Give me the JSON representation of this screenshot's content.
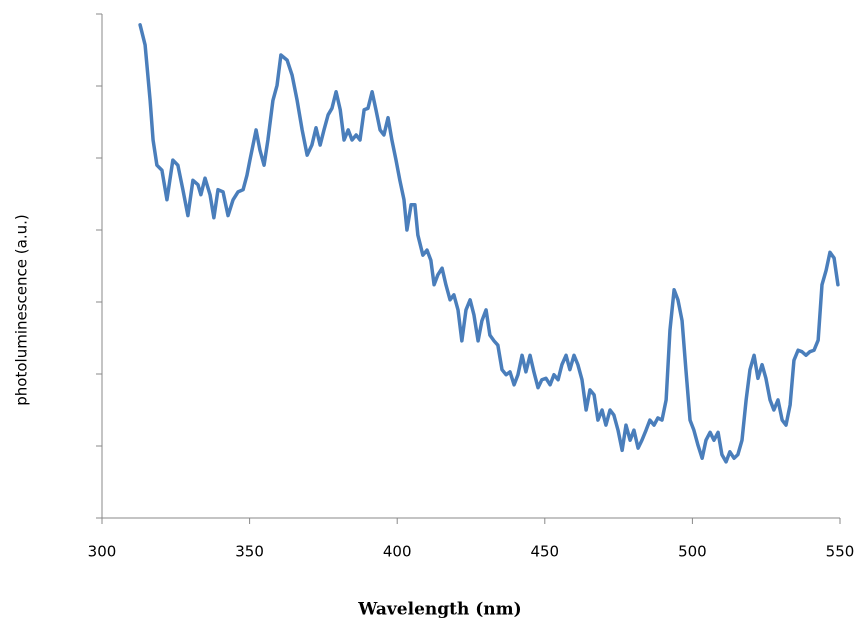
{
  "chart_data": {
    "type": "line",
    "x_label": "Wavelength (nm)",
    "y_label": "photoluminescence  (a.u.)",
    "xlim": [
      300,
      550
    ],
    "xticks": [
      300,
      350,
      400,
      450,
      500,
      550
    ],
    "ylim": [
      0,
      7
    ],
    "yticks": [
      0,
      1,
      2,
      3,
      4,
      5,
      6,
      7
    ],
    "series": [
      {
        "color": "#4a7ebb",
        "x": [
          312.9,
          314.6,
          316.3,
          317.3,
          318.6,
          320.3,
          322,
          324,
          325.7,
          327.4,
          329.1,
          330.8,
          332.5,
          333.5,
          334.9,
          336.6,
          337.9,
          339.3,
          341,
          342.7,
          344.4,
          346.1,
          347.8,
          349.1,
          350.1,
          352.2,
          353.5,
          354.9,
          356.2,
          357.9,
          359.3,
          360.6,
          362.7,
          364.4,
          366.1,
          367.8,
          369.5,
          371.1,
          372.5,
          373.9,
          375.2,
          376.6,
          377.9,
          379.3,
          380.7,
          382,
          383.4,
          384.7,
          386.1,
          387.4,
          388.8,
          390.1,
          391.5,
          392.8,
          394.2,
          395.5,
          396.9,
          398.2,
          399.6,
          400.9,
          402.3,
          403.3,
          404.7,
          406,
          407,
          408.7,
          410.1,
          411.4,
          412.5,
          413.8,
          415.2,
          416.5,
          417.9,
          419.2,
          420.6,
          421.9,
          423.3,
          424.7,
          426,
          427.4,
          428.7,
          430.1,
          431.4,
          432.8,
          434.1,
          435.5,
          436.9,
          438.2,
          439.6,
          440.9,
          442.3,
          443.6,
          445,
          446.3,
          447.7,
          449,
          450.4,
          451.8,
          453.1,
          454.5,
          455.8,
          457.2,
          458.5,
          459.9,
          461.2,
          462.6,
          464,
          465.3,
          466.7,
          468,
          469.4,
          470.7,
          472.1,
          473.4,
          474.8,
          476.2,
          477.5,
          478.9,
          480.2,
          481.6,
          482.9,
          484.3,
          485.6,
          487,
          488.3,
          489.7,
          491.1,
          492.4,
          493.8,
          495.1,
          496.5,
          497.8,
          499.2,
          500.5,
          501.9,
          503.3,
          504.6,
          506,
          507.3,
          508.7,
          510,
          511.4,
          512.7,
          514.1,
          515.4,
          516.8,
          518.2,
          519.5,
          520.9,
          522.2,
          523.6,
          524.9,
          526.3,
          527.6,
          529,
          530.4,
          531.7,
          533.1,
          534.4,
          535.8,
          537.1,
          538.5,
          539.8,
          541.2,
          542.6,
          543.9,
          545.3,
          546.6,
          548,
          549.3
        ],
        "values": [
          6.85,
          6.57,
          5.8,
          5.25,
          4.9,
          4.83,
          4.42,
          4.97,
          4.9,
          4.56,
          4.2,
          4.69,
          4.63,
          4.49,
          4.72,
          4.49,
          4.17,
          4.56,
          4.53,
          4.2,
          4.42,
          4.53,
          4.56,
          4.76,
          4.97,
          5.39,
          5.11,
          4.9,
          5.25,
          5.8,
          6.01,
          6.43,
          6.36,
          6.15,
          5.8,
          5.39,
          5.04,
          5.18,
          5.42,
          5.18,
          5.39,
          5.6,
          5.69,
          5.92,
          5.67,
          5.25,
          5.39,
          5.25,
          5.32,
          5.25,
          5.67,
          5.69,
          5.92,
          5.67,
          5.39,
          5.32,
          5.56,
          5.25,
          4.97,
          4.69,
          4.42,
          4,
          4.35,
          4.35,
          3.93,
          3.65,
          3.72,
          3.58,
          3.24,
          3.38,
          3.47,
          3.24,
          3.03,
          3.1,
          2.89,
          2.46,
          2.89,
          3.03,
          2.82,
          2.46,
          2.74,
          2.89,
          2.54,
          2.46,
          2.4,
          2.06,
          1.99,
          2.03,
          1.85,
          1.99,
          2.26,
          2.03,
          2.26,
          2.03,
          1.81,
          1.92,
          1.94,
          1.85,
          1.99,
          1.92,
          2.13,
          2.26,
          2.06,
          2.26,
          2.13,
          1.92,
          1.5,
          1.78,
          1.71,
          1.36,
          1.5,
          1.29,
          1.5,
          1.43,
          1.22,
          0.94,
          1.29,
          1.08,
          1.22,
          0.97,
          1.08,
          1.22,
          1.36,
          1.29,
          1.39,
          1.36,
          1.64,
          2.61,
          3.17,
          3.03,
          2.74,
          2.06,
          1.36,
          1.22,
          1.01,
          0.83,
          1.08,
          1.19,
          1.08,
          1.19,
          0.88,
          0.78,
          0.92,
          0.83,
          0.88,
          1.08,
          1.64,
          2.06,
          2.26,
          1.94,
          2.13,
          1.94,
          1.64,
          1.5,
          1.64,
          1.36,
          1.29,
          1.57,
          2.19,
          2.33,
          2.31,
          2.26,
          2.31,
          2.33,
          2.47,
          3.24,
          3.44,
          3.69,
          3.61,
          3.24
        ]
      }
    ]
  }
}
